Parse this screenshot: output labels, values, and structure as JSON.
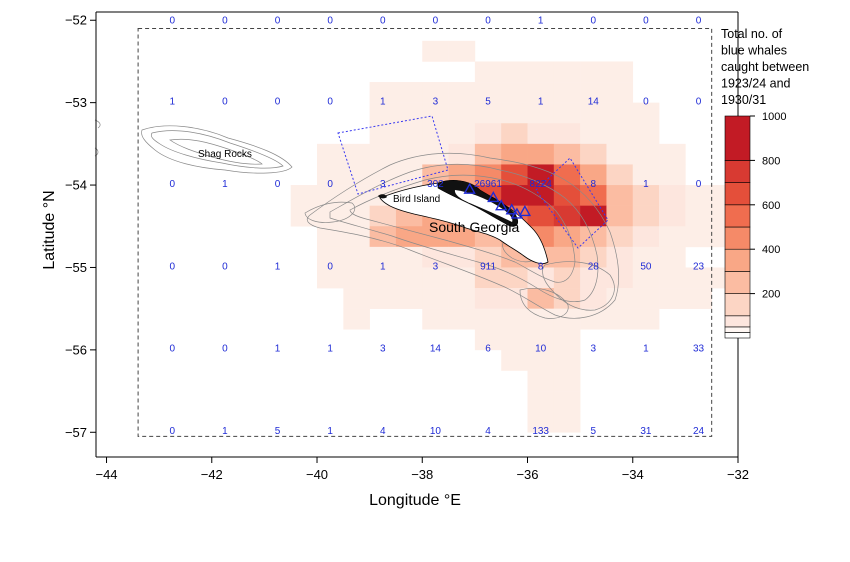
{
  "chart_data": {
    "type": "heatmap",
    "xlabel": "Longitude °E",
    "ylabel": "Latitude °N",
    "xlim": [
      -44.2,
      -32
    ],
    "ylim": [
      -57.3,
      -51.9
    ],
    "x_ticks": [
      -44,
      -42,
      -40,
      -38,
      -36,
      -34,
      -32
    ],
    "y_ticks": [
      -52,
      -53,
      -54,
      -55,
      -56,
      -57
    ],
    "x_tick_labels": [
      "−44",
      "−42",
      "−40",
      "−38",
      "−36",
      "−34",
      "−32"
    ],
    "y_tick_labels": [
      "−52",
      "−53",
      "−54",
      "−55",
      "−56",
      "−57"
    ],
    "catch_cells": [
      [
        -38.0,
        -52.25,
        1
      ],
      [
        -37.5,
        -52.25,
        1
      ],
      [
        -37.0,
        -52.5,
        1
      ],
      [
        -36.5,
        -52.5,
        1
      ],
      [
        -36.0,
        -52.5,
        1
      ],
      [
        -35.5,
        -52.5,
        1
      ],
      [
        -35.0,
        -52.5,
        1
      ],
      [
        -34.5,
        -52.5,
        1
      ],
      [
        -39.0,
        -52.75,
        1
      ],
      [
        -38.5,
        -52.75,
        1
      ],
      [
        -38.0,
        -52.75,
        1
      ],
      [
        -37.5,
        -52.75,
        1
      ],
      [
        -37.0,
        -52.75,
        1
      ],
      [
        -36.5,
        -52.75,
        1
      ],
      [
        -36.0,
        -52.75,
        1
      ],
      [
        -35.5,
        -52.75,
        1
      ],
      [
        -35.0,
        -52.75,
        1
      ],
      [
        -34.5,
        -52.75,
        1
      ],
      [
        -39.0,
        -53.0,
        1
      ],
      [
        -38.5,
        -53.0,
        1
      ],
      [
        -38.0,
        -53.0,
        1
      ],
      [
        -37.5,
        -53.0,
        1
      ],
      [
        -37.0,
        -53.0,
        1
      ],
      [
        -36.5,
        -53.0,
        1
      ],
      [
        -36.0,
        -53.0,
        1
      ],
      [
        -35.5,
        -53.0,
        1
      ],
      [
        -35.0,
        -53.0,
        1
      ],
      [
        -34.5,
        -53.0,
        1
      ],
      [
        -34.0,
        -53.0,
        1
      ],
      [
        -39.0,
        -53.25,
        1
      ],
      [
        -38.5,
        -53.25,
        1
      ],
      [
        -38.0,
        -53.25,
        1
      ],
      [
        -37.5,
        -53.25,
        1
      ],
      [
        -37.0,
        -53.25,
        60
      ],
      [
        -36.5,
        -53.25,
        120
      ],
      [
        -36.0,
        -53.25,
        60
      ],
      [
        -35.5,
        -53.25,
        60
      ],
      [
        -35.0,
        -53.25,
        1
      ],
      [
        -34.5,
        -53.25,
        1
      ],
      [
        -34.0,
        -53.25,
        1
      ],
      [
        -40.0,
        -53.5,
        1
      ],
      [
        -39.5,
        -53.5,
        1
      ],
      [
        -39.0,
        -53.5,
        1
      ],
      [
        -38.5,
        -53.5,
        1
      ],
      [
        -38.0,
        -53.5,
        1
      ],
      [
        -37.5,
        -53.5,
        60
      ],
      [
        -37.0,
        -53.5,
        250
      ],
      [
        -36.5,
        -53.5,
        350
      ],
      [
        -36.0,
        -53.5,
        350
      ],
      [
        -35.5,
        -53.5,
        250
      ],
      [
        -35.0,
        -53.5,
        120
      ],
      [
        -34.5,
        -53.5,
        1
      ],
      [
        -34.0,
        -53.5,
        1
      ],
      [
        -33.5,
        -53.5,
        1
      ],
      [
        -40.0,
        -53.75,
        1
      ],
      [
        -39.5,
        -53.75,
        1
      ],
      [
        -39.0,
        -53.75,
        1
      ],
      [
        -38.5,
        -53.75,
        1
      ],
      [
        -38.0,
        -53.75,
        250
      ],
      [
        -37.5,
        -53.75,
        350
      ],
      [
        -37.0,
        -53.75,
        450
      ],
      [
        -36.5,
        -53.75,
        650
      ],
      [
        -36.0,
        -53.75,
        900
      ],
      [
        -35.5,
        -53.75,
        550
      ],
      [
        -35.0,
        -53.75,
        350
      ],
      [
        -34.5,
        -53.75,
        120
      ],
      [
        -34.0,
        -53.75,
        1
      ],
      [
        -33.5,
        -53.75,
        1
      ],
      [
        -40.5,
        -54.0,
        1
      ],
      [
        -40.0,
        -54.0,
        1
      ],
      [
        -39.5,
        -54.0,
        1
      ],
      [
        -39.0,
        -54.0,
        1
      ],
      [
        -38.5,
        -54.0,
        1
      ],
      [
        -38.0,
        -54.0,
        250
      ],
      [
        -37.5,
        -54.0,
        450
      ],
      [
        -37.0,
        -54.0,
        650
      ],
      [
        -36.5,
        -54.0,
        800
      ],
      [
        -36.0,
        -54.0,
        900
      ],
      [
        -35.5,
        -54.0,
        650
      ],
      [
        -35.0,
        -54.0,
        500
      ],
      [
        -34.5,
        -54.0,
        250
      ],
      [
        -34.0,
        -54.0,
        120
      ],
      [
        -33.5,
        -54.0,
        60
      ],
      [
        -33.0,
        -54.0,
        1
      ],
      [
        -32.5,
        -54.0,
        1
      ],
      [
        -40.5,
        -54.25,
        1
      ],
      [
        -40.0,
        -54.25,
        1
      ],
      [
        -39.5,
        -54.25,
        1
      ],
      [
        -39.0,
        -54.25,
        120
      ],
      [
        -38.5,
        -54.25,
        250
      ],
      [
        -38.0,
        -54.25,
        350
      ],
      [
        -37.5,
        -54.25,
        450
      ],
      [
        -37.0,
        -54.25,
        500
      ],
      [
        -36.5,
        -54.25,
        550
      ],
      [
        -36.0,
        -54.25,
        650
      ],
      [
        -35.5,
        -54.25,
        700
      ],
      [
        -35.0,
        -54.25,
        850
      ],
      [
        -34.5,
        -54.25,
        250
      ],
      [
        -34.0,
        -54.25,
        120
      ],
      [
        -33.5,
        -54.25,
        60
      ],
      [
        -33.0,
        -54.25,
        1
      ],
      [
        -32.5,
        -54.25,
        1
      ],
      [
        -40.0,
        -54.5,
        1
      ],
      [
        -39.5,
        -54.5,
        1
      ],
      [
        -39.0,
        -54.5,
        250
      ],
      [
        -38.5,
        -54.5,
        350
      ],
      [
        -38.0,
        -54.5,
        350
      ],
      [
        -37.5,
        -54.5,
        350
      ],
      [
        -37.0,
        -54.5,
        250
      ],
      [
        -36.5,
        -54.5,
        350
      ],
      [
        -36.0,
        -54.5,
        450
      ],
      [
        -35.5,
        -54.5,
        350
      ],
      [
        -35.0,
        -54.5,
        250
      ],
      [
        -34.5,
        -54.5,
        120
      ],
      [
        -34.0,
        -54.5,
        60
      ],
      [
        -33.5,
        -54.5,
        1
      ],
      [
        -33.0,
        -54.5,
        1
      ],
      [
        -32.5,
        -54.5,
        1
      ],
      [
        -40.0,
        -54.75,
        1
      ],
      [
        -39.5,
        -54.75,
        1
      ],
      [
        -39.0,
        -54.75,
        1
      ],
      [
        -38.5,
        -54.75,
        1
      ],
      [
        -38.0,
        -54.75,
        60
      ],
      [
        -37.5,
        -54.75,
        60
      ],
      [
        -37.0,
        -54.75,
        120
      ],
      [
        -36.5,
        -54.75,
        250
      ],
      [
        -36.0,
        -54.75,
        250
      ],
      [
        -35.5,
        -54.75,
        250
      ],
      [
        -35.0,
        -54.75,
        120
      ],
      [
        -34.5,
        -54.75,
        60
      ],
      [
        -34.0,
        -54.75,
        1
      ],
      [
        -33.5,
        -54.75,
        1
      ],
      [
        -40.0,
        -55.0,
        1
      ],
      [
        -39.5,
        -55.0,
        1
      ],
      [
        -39.0,
        -55.0,
        1
      ],
      [
        -38.5,
        -55.0,
        1
      ],
      [
        -38.0,
        -55.0,
        1
      ],
      [
        -37.5,
        -55.0,
        1
      ],
      [
        -37.0,
        -55.0,
        120
      ],
      [
        -36.5,
        -55.0,
        120
      ],
      [
        -36.0,
        -55.0,
        60
      ],
      [
        -35.5,
        -55.0,
        120
      ],
      [
        -35.0,
        -55.0,
        60
      ],
      [
        -34.5,
        -55.0,
        60
      ],
      [
        -34.0,
        -55.0,
        1
      ],
      [
        -33.5,
        -55.0,
        1
      ],
      [
        -33.0,
        -55.0,
        1
      ],
      [
        -32.5,
        -55.0,
        1
      ],
      [
        -39.5,
        -55.25,
        1
      ],
      [
        -39.0,
        -55.25,
        1
      ],
      [
        -38.5,
        -55.25,
        1
      ],
      [
        -38.0,
        -55.25,
        1
      ],
      [
        -37.5,
        -55.25,
        1
      ],
      [
        -37.0,
        -55.25,
        60
      ],
      [
        -36.5,
        -55.25,
        60
      ],
      [
        -36.0,
        -55.25,
        250
      ],
      [
        -35.5,
        -55.25,
        120
      ],
      [
        -35.0,
        -55.25,
        60
      ],
      [
        -34.5,
        -55.25,
        1
      ],
      [
        -34.0,
        -55.25,
        1
      ],
      [
        -33.5,
        -55.25,
        1
      ],
      [
        -33.0,
        -55.25,
        1
      ],
      [
        -39.5,
        -55.5,
        1
      ],
      [
        -38.0,
        -55.5,
        1
      ],
      [
        -37.5,
        -55.5,
        1
      ],
      [
        -37.0,
        -55.5,
        1
      ],
      [
        -36.5,
        -55.5,
        1
      ],
      [
        -36.0,
        -55.5,
        1
      ],
      [
        -35.5,
        -55.5,
        1
      ],
      [
        -35.0,
        -55.5,
        1
      ],
      [
        -34.5,
        -55.5,
        1
      ],
      [
        -34.0,
        -55.5,
        1
      ],
      [
        -37.0,
        -55.75,
        1
      ],
      [
        -36.5,
        -55.75,
        1
      ],
      [
        -36.0,
        -55.75,
        1
      ],
      [
        -35.5,
        -55.75,
        1
      ],
      [
        -36.5,
        -56.0,
        1
      ],
      [
        -36.0,
        -56.0,
        1
      ],
      [
        -35.5,
        -56.0,
        1
      ],
      [
        -36.0,
        -56.25,
        1
      ],
      [
        -35.5,
        -56.25,
        1
      ],
      [
        -36.0,
        -56.5,
        1
      ],
      [
        -35.5,
        -56.5,
        1
      ],
      [
        -36.0,
        -56.75,
        1
      ],
      [
        -35.5,
        -56.75,
        1
      ]
    ],
    "count_labels": [
      [
        -42.75,
        -52.0,
        "0"
      ],
      [
        -41.75,
        -52.0,
        "0"
      ],
      [
        -40.75,
        -52.0,
        "0"
      ],
      [
        -39.75,
        -52.0,
        "0"
      ],
      [
        -38.75,
        -52.0,
        "0"
      ],
      [
        -37.75,
        -52.0,
        "0"
      ],
      [
        -36.75,
        -52.0,
        "0"
      ],
      [
        -35.75,
        -52.0,
        "1"
      ],
      [
        -34.75,
        -52.0,
        "0"
      ],
      [
        -33.75,
        -52.0,
        "0"
      ],
      [
        -32.75,
        -52.0,
        "0"
      ],
      [
        -42.75,
        -52.98,
        "1"
      ],
      [
        -41.75,
        -52.98,
        "0"
      ],
      [
        -40.75,
        -52.98,
        "0"
      ],
      [
        -39.75,
        -52.98,
        "0"
      ],
      [
        -38.75,
        -52.98,
        "1"
      ],
      [
        -37.75,
        -52.98,
        "3"
      ],
      [
        -36.75,
        -52.98,
        "5"
      ],
      [
        -35.75,
        -52.98,
        "1"
      ],
      [
        -34.75,
        -52.98,
        "14"
      ],
      [
        -33.75,
        -52.98,
        "0"
      ],
      [
        -32.75,
        -52.98,
        "0"
      ],
      [
        -42.75,
        -53.98,
        "0"
      ],
      [
        -41.75,
        -53.98,
        "1"
      ],
      [
        -40.75,
        -53.98,
        "0"
      ],
      [
        -39.75,
        -53.98,
        "0"
      ],
      [
        -38.75,
        -53.98,
        "3"
      ],
      [
        -37.75,
        -53.98,
        "302"
      ],
      [
        -36.75,
        -53.98,
        "26961"
      ],
      [
        -35.75,
        -53.98,
        "8224"
      ],
      [
        -34.75,
        -53.98,
        "8"
      ],
      [
        -33.75,
        -53.98,
        "1"
      ],
      [
        -32.75,
        -53.98,
        "0"
      ],
      [
        -42.75,
        -54.98,
        "0"
      ],
      [
        -41.75,
        -54.98,
        "0"
      ],
      [
        -40.75,
        -54.98,
        "1"
      ],
      [
        -39.75,
        -54.98,
        "0"
      ],
      [
        -38.75,
        -54.98,
        "1"
      ],
      [
        -37.75,
        -54.98,
        "3"
      ],
      [
        -36.75,
        -54.98,
        "911"
      ],
      [
        -35.75,
        -54.98,
        "8"
      ],
      [
        -34.75,
        -54.98,
        "28"
      ],
      [
        -33.75,
        -54.98,
        "50"
      ],
      [
        -32.75,
        -54.98,
        "23"
      ],
      [
        -42.75,
        -55.98,
        "0"
      ],
      [
        -41.75,
        -55.98,
        "0"
      ],
      [
        -40.75,
        -55.98,
        "1"
      ],
      [
        -39.75,
        -55.98,
        "1"
      ],
      [
        -38.75,
        -55.98,
        "3"
      ],
      [
        -37.75,
        -55.98,
        "14"
      ],
      [
        -36.75,
        -55.98,
        "6"
      ],
      [
        -35.75,
        -55.98,
        "10"
      ],
      [
        -34.75,
        -55.98,
        "3"
      ],
      [
        -33.75,
        -55.98,
        "1"
      ],
      [
        -32.75,
        -55.98,
        "33"
      ],
      [
        -42.75,
        -56.98,
        "0"
      ],
      [
        -41.75,
        -56.98,
        "1"
      ],
      [
        -40.75,
        -56.98,
        "5"
      ],
      [
        -39.75,
        -56.98,
        "1"
      ],
      [
        -38.75,
        -56.98,
        "4"
      ],
      [
        -37.75,
        -56.98,
        "10"
      ],
      [
        -36.75,
        -56.98,
        "4"
      ],
      [
        -35.75,
        -56.98,
        "133"
      ],
      [
        -34.75,
        -56.98,
        "5"
      ],
      [
        -33.75,
        -56.98,
        "31"
      ],
      [
        -32.75,
        -56.98,
        "24"
      ]
    ],
    "study_area": [
      -43.4,
      -32.5,
      -52.1,
      -57.05
    ],
    "whaling_stations": [
      [
        -37.1,
        -54.05
      ],
      [
        -36.65,
        -54.15
      ],
      [
        -36.5,
        -54.25
      ],
      [
        -36.3,
        -54.3
      ],
      [
        -36.2,
        -54.35
      ],
      [
        -36.05,
        -54.32
      ]
    ],
    "color_scale": {
      "breaks": [
        0,
        25,
        50,
        100,
        200,
        300,
        400,
        500,
        600,
        700,
        800,
        1000
      ],
      "colors": [
        "#ffffff",
        "#fff7f3",
        "#fde6de",
        "#fcd5c4",
        "#fbbca2",
        "#f9a786",
        "#f58a68",
        "#f06d4f",
        "#e44f3a",
        "#d83a32",
        "#c21b25"
      ],
      "tick_values": [
        200,
        400,
        600,
        800,
        1000
      ],
      "tick_labels": [
        "200",
        "400",
        "600",
        "800",
        "1000"
      ],
      "title_lines": [
        "Total no. of",
        "blue whales",
        "caught between",
        "1923/24 and",
        "1930/31"
      ]
    }
  },
  "places": {
    "shag_rocks": "Shag Rocks",
    "bird_island": "Bird Island",
    "south_georgia": "South Georgia"
  },
  "colors": {
    "count_label": "#1f2bd6",
    "contour": "#8a8a8a",
    "survey_box": "#3a3af0"
  }
}
